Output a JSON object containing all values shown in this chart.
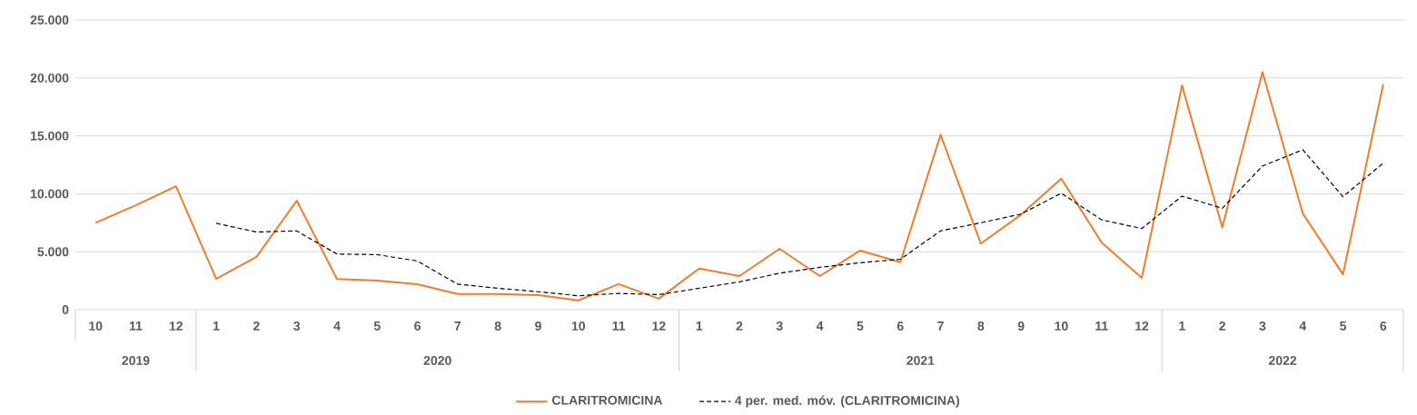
{
  "chart_data": {
    "type": "line",
    "categories": [
      "10",
      "11",
      "12",
      "1",
      "2",
      "3",
      "4",
      "5",
      "6",
      "7",
      "8",
      "9",
      "10",
      "11",
      "12",
      "1",
      "2",
      "3",
      "4",
      "5",
      "6",
      "7",
      "8",
      "9",
      "10",
      "11",
      "12",
      "1",
      "2",
      "3",
      "4",
      "5",
      "6"
    ],
    "series": [
      {
        "name": "CLARITROMICINA",
        "color": "#ed7d31",
        "line_style": "solid",
        "values": [
          7500,
          9000,
          10650,
          2650,
          4550,
          9400,
          2650,
          2500,
          2200,
          1350,
          1350,
          1250,
          800,
          2200,
          950,
          3550,
          2900,
          5250,
          2900,
          5100,
          4100,
          15100,
          5700,
          8200,
          11300,
          5800,
          2750,
          19350,
          7100,
          20500,
          8300,
          3050,
          19450
        ]
      },
      {
        "name": "4 per. med. móv. (CLARITROMICINA)",
        "color": "#000000",
        "line_style": "dashed",
        "values": [
          null,
          null,
          null,
          7450,
          6700,
          6800,
          4800,
          4750,
          4200,
          2200,
          1850,
          1550,
          1200,
          1400,
          1300,
          1850,
          2400,
          3150,
          3650,
          4050,
          4350,
          6800,
          7500,
          8250,
          10050,
          7750,
          7000,
          9800,
          8750,
          12400,
          13800,
          9750,
          12650
        ]
      }
    ],
    "ylim": [
      0,
      25000
    ],
    "yticks": [
      {
        "value": 0,
        "label": "0"
      },
      {
        "value": 5000,
        "label": "5.000"
      },
      {
        "value": 10000,
        "label": "10.000"
      },
      {
        "value": 15000,
        "label": "15.000"
      },
      {
        "value": 20000,
        "label": "20.000"
      },
      {
        "value": 25000,
        "label": "25.000"
      }
    ],
    "grid": "y",
    "legend": "bottom",
    "marker": "none",
    "annotations": [
      "2019",
      "2020",
      "2021",
      "2022"
    ]
  }
}
